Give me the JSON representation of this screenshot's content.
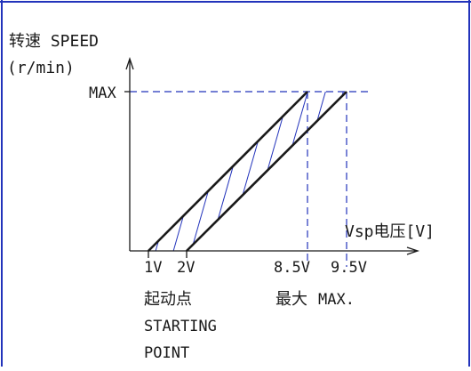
{
  "diagram": {
    "y_axis_title_line1": "转速 SPEED",
    "y_axis_title_line2": "(r/min)",
    "y_max_label": "MAX",
    "x_axis_title": "Vsp电压[V]",
    "x_ticks": [
      "1V",
      "2V",
      "8.5V",
      "9.5V"
    ],
    "start_label_cn": "起动点",
    "start_label_en_1": "STARTING",
    "start_label_en_2": "POINT",
    "max_label_cn": "最大",
    "max_label_en": "MAX.",
    "colors": {
      "frame": "#2233bb",
      "axis": "#1a1a1a",
      "hatch": "#2233bb",
      "dash": "#2233bb"
    }
  }
}
